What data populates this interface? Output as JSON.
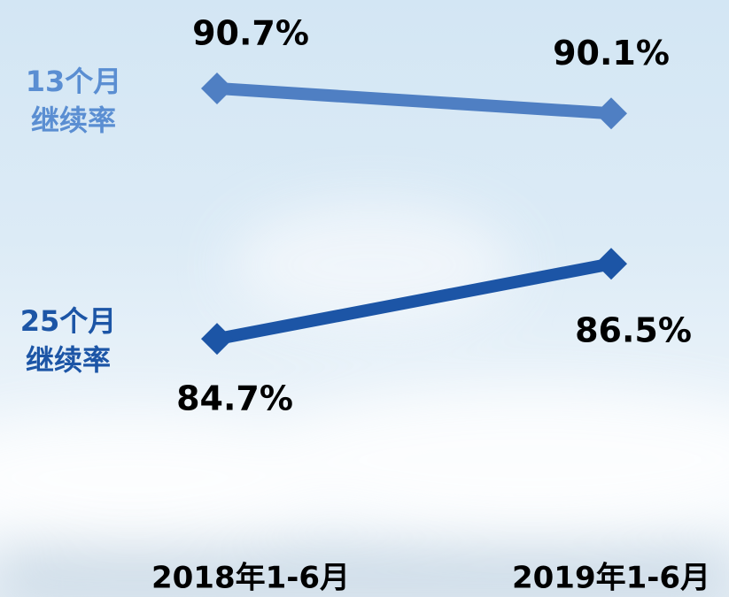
{
  "chart_data": {
    "type": "line",
    "categories": [
      "2018年1-6月",
      "2019年1-6月"
    ],
    "series": [
      {
        "name": "13个月继续率",
        "color": "#4f7fc3",
        "values": [
          90.7,
          90.1
        ],
        "value_labels": [
          "90.7%",
          "90.1%"
        ]
      },
      {
        "name": "25个月继续率",
        "color": "#1c55a6",
        "values": [
          84.7,
          86.5
        ],
        "value_labels": [
          "84.7%",
          "86.5%"
        ]
      }
    ],
    "ylim": [
      83,
      92
    ]
  }
}
